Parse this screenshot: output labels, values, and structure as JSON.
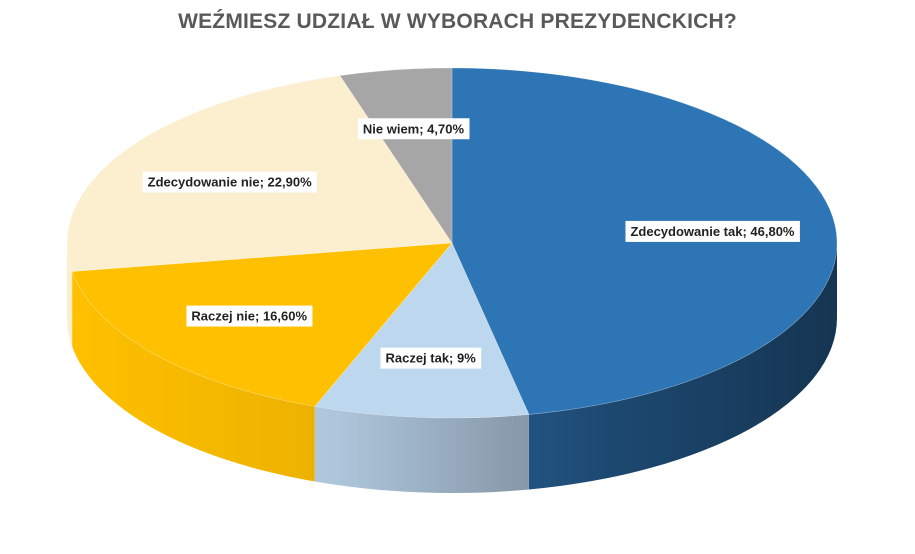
{
  "chart_data": {
    "type": "pie",
    "title": "WEŹMIESZ UDZIAŁ W WYBORACH PREZYDENCKICH?",
    "slices": [
      {
        "label": "Zdecydowanie tak",
        "value": 46.8,
        "label_text": "Zdecydowanie tak; 46,80%",
        "color": "#2E75B6"
      },
      {
        "label": "Raczej tak",
        "value": 9.0,
        "label_text": "Raczej tak; 9%",
        "color": "#BDD7EE"
      },
      {
        "label": "Raczej nie",
        "value": 16.6,
        "label_text": "Raczej nie; 16,60%",
        "color": "#FFC000"
      },
      {
        "label": "Zdecydowanie nie",
        "value": 22.9,
        "label_text": "Zdecydowanie nie; 22,90%",
        "color": "#FBEFCF"
      },
      {
        "label": "Nie wiem",
        "value": 4.7,
        "label_text": "Nie wiem; 4,70%",
        "color": "#A6A6A6"
      }
    ],
    "style": "3d",
    "legend": "none"
  }
}
